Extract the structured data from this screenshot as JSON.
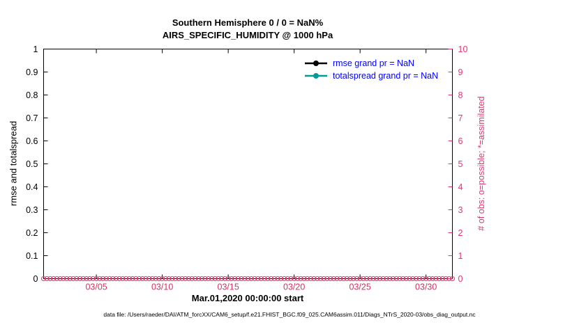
{
  "titles": {
    "line1": "Southern Hemisphere 0 / 0 = NaN%",
    "line2": "AIRS_SPECIFIC_HUMIDITY @ 1000 hPa"
  },
  "footer": {
    "text": "data file: /Users/raeder/DAI/ATM_forcXX/CAM6_setup/f.e21.FHIST_BGC.f09_025.CAM6assim.011/Diags_NTrS_2020-03/obs_diag_output.nc"
  },
  "chart_data": {
    "type": "line",
    "title": "Southern Hemisphere 0 / 0 = NaN%",
    "subtitle": "AIRS_SPECIFIC_HUMIDITY @ 1000 hPa",
    "xlabel": "Mar.01,2020 00:00:00 start",
    "ylabel_left": "rmse and totalspread",
    "ylabel_right": "# of obs: o=possible; *=assimilated",
    "grid": false,
    "x_axis": {
      "range_days": [
        1,
        32
      ],
      "ticks": [
        5,
        10,
        15,
        20,
        25,
        30
      ],
      "tick_labels": [
        "03/05",
        "03/10",
        "03/15",
        "03/20",
        "03/25",
        "03/30"
      ],
      "color": "#d8315f"
    },
    "y_left": {
      "lim": [
        0,
        1
      ],
      "ticks": [
        0,
        0.1,
        0.2,
        0.3,
        0.4,
        0.5,
        0.6,
        0.7,
        0.8,
        0.9,
        1
      ],
      "tick_labels": [
        "0",
        "0.1",
        "0.2",
        "0.3",
        "0.4",
        "0.5",
        "0.6",
        "0.7",
        "0.8",
        "0.9",
        "1"
      ],
      "color": "#000000"
    },
    "y_right": {
      "lim": [
        0,
        10
      ],
      "ticks": [
        0,
        1,
        2,
        3,
        4,
        5,
        6,
        7,
        8,
        9,
        10
      ],
      "tick_labels": [
        "0",
        "1",
        "2",
        "3",
        "4",
        "5",
        "6",
        "7",
        "8",
        "9",
        "10"
      ],
      "color": "#e8336e"
    },
    "legend": {
      "position": "top-right",
      "text_color": "#0000ff",
      "entries": [
        {
          "label": "rmse grand pr = NaN",
          "color": "#000000"
        },
        {
          "label": "totalspread grand pr = NaN",
          "color": "#009a9a"
        }
      ]
    },
    "series": [
      {
        "name": "rmse",
        "axis": "left",
        "color": "#000000",
        "marker": "dot",
        "values": []
      },
      {
        "name": "totalspread",
        "axis": "left",
        "color": "#009a9a",
        "marker": "dot",
        "values": []
      },
      {
        "name": "possible_obs",
        "axis": "right",
        "color": "#e8336e",
        "marker": "circle",
        "y_value": 0,
        "x_start": 1,
        "x_end": 32,
        "x_step": 0.25
      }
    ]
  }
}
